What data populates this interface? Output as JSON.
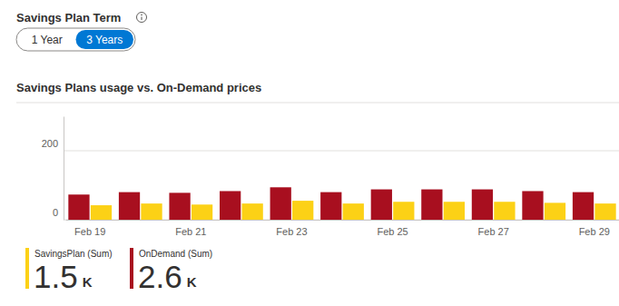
{
  "controls": {
    "label": "Savings Plan Term",
    "options": [
      "1 Year",
      "3 Years"
    ],
    "selected": "3 Years"
  },
  "chart_data": {
    "type": "bar",
    "title": "Savings Plans usage vs. On-Demand prices",
    "categories": [
      "Feb 19",
      null,
      "Feb 21",
      null,
      "Feb 23",
      null,
      "Feb 25",
      null,
      "Feb 27",
      null,
      "Feb 29"
    ],
    "series": [
      {
        "name": "OnDemand (Sum)",
        "color": "#a80f1f",
        "values": [
          73,
          80,
          78,
          83,
          94,
          80,
          88,
          88,
          88,
          83,
          80
        ],
        "sum": 2.6,
        "sum_unit": "K"
      },
      {
        "name": "SavingsPlan (Sum)",
        "color": "#fcd116",
        "values": [
          42,
          47,
          44,
          47,
          55,
          47,
          52,
          52,
          52,
          49,
          47
        ],
        "sum": 1.5,
        "sum_unit": "K"
      }
    ],
    "ylim": [
      0,
      300
    ],
    "yticks": [
      0,
      200
    ],
    "grid": true,
    "legend": "bottom"
  }
}
